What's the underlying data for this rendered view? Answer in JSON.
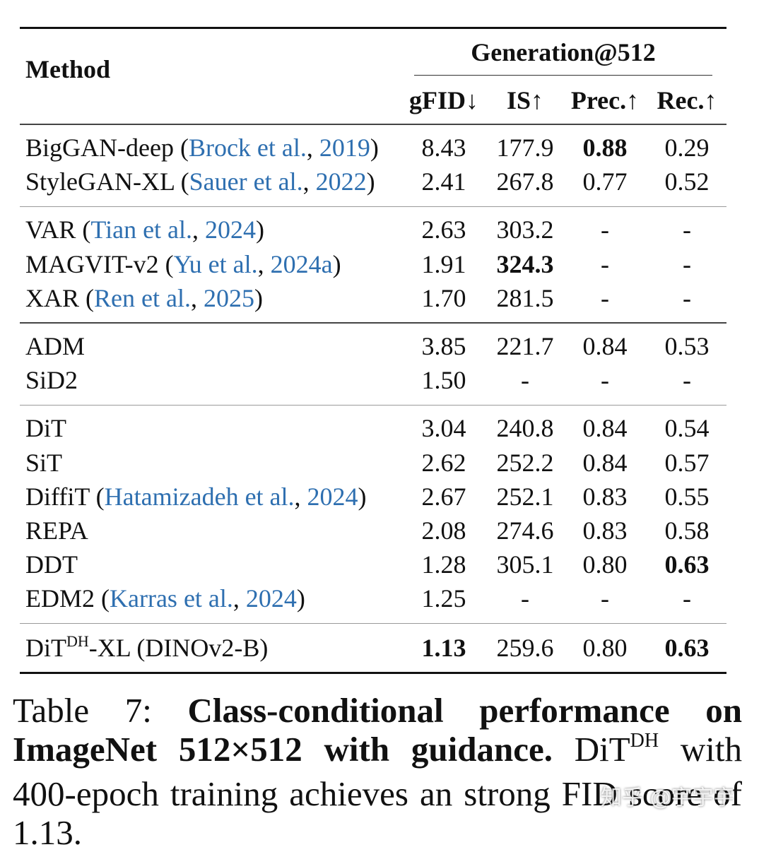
{
  "table": {
    "header": {
      "method": "Method",
      "group": "Generation@512",
      "cols": [
        "gFID↓",
        "IS↑",
        "Prec.↑",
        "Rec.↑"
      ]
    },
    "rows": [
      {
        "name": "BigGAN-deep",
        "cite_open": " (",
        "cite_author": "Brock et al.",
        "cite_sep": ", ",
        "cite_year": "2019",
        "cite_close": ")",
        "gfid": "8.43",
        "is": "177.9",
        "prec": "0.88",
        "rec": "0.29"
      },
      {
        "name": "StyleGAN-XL",
        "cite_open": " (",
        "cite_author": "Sauer et al.",
        "cite_sep": ", ",
        "cite_year": "2022",
        "cite_close": ")",
        "gfid": "2.41",
        "is": "267.8",
        "prec": "0.77",
        "rec": "0.52"
      },
      {
        "name": "VAR",
        "cite_open": " (",
        "cite_author": "Tian et al.",
        "cite_sep": ", ",
        "cite_year": "2024",
        "cite_close": ")",
        "gfid": "2.63",
        "is": "303.2",
        "prec": "-",
        "rec": "-"
      },
      {
        "name": "MAGVIT-v2",
        "cite_open": " (",
        "cite_author": "Yu et al.",
        "cite_sep": ", ",
        "cite_year": "2024a",
        "cite_close": ")",
        "gfid": "1.91",
        "is": "324.3",
        "prec": "-",
        "rec": "-"
      },
      {
        "name": "XAR",
        "cite_open": " (",
        "cite_author": "Ren et al.",
        "cite_sep": ", ",
        "cite_year": "2025",
        "cite_close": ")",
        "gfid": "1.70",
        "is": "281.5",
        "prec": "-",
        "rec": "-"
      },
      {
        "name": "ADM",
        "gfid": "3.85",
        "is": "221.7",
        "prec": "0.84",
        "rec": "0.53"
      },
      {
        "name": "SiD2",
        "gfid": "1.50",
        "is": "-",
        "prec": "-",
        "rec": "-"
      },
      {
        "name": "DiT",
        "gfid": "3.04",
        "is": "240.8",
        "prec": "0.84",
        "rec": "0.54"
      },
      {
        "name": "SiT",
        "gfid": "2.62",
        "is": "252.2",
        "prec": "0.84",
        "rec": "0.57"
      },
      {
        "name": "DiffiT",
        "cite_open": " (",
        "cite_author": "Hatamizadeh et al.",
        "cite_sep": ", ",
        "cite_year": "2024",
        "cite_close": ")",
        "gfid": "2.67",
        "is": "252.1",
        "prec": "0.83",
        "rec": "0.55"
      },
      {
        "name": "REPA",
        "gfid": "2.08",
        "is": "274.6",
        "prec": "0.83",
        "rec": "0.58"
      },
      {
        "name": "DDT",
        "gfid": "1.28",
        "is": "305.1",
        "prec": "0.80",
        "rec": "0.63"
      },
      {
        "name": "EDM2",
        "cite_open": " (",
        "cite_author": "Karras et al.",
        "cite_sep": ", ",
        "cite_year": "2024",
        "cite_close": ")",
        "gfid": "1.25",
        "is": "-",
        "prec": "-",
        "rec": "-"
      },
      {
        "name_base": "DiT",
        "name_sup": "DH",
        "name_rest": "-XL (DINOv2-B)",
        "gfid": "1.13",
        "is": "259.6",
        "prec": "0.80",
        "rec": "0.63"
      }
    ]
  },
  "caption": {
    "label": "Table 7: ",
    "bold": "Class-conditional performance on ImageNet 512×512 with guidance.",
    "text_a": " DiT",
    "text_sup": "DH",
    "text_b": " with 400-epoch training achieves an strong FID score of 1.13."
  },
  "watermark": "知乎 @宇宇宇"
}
